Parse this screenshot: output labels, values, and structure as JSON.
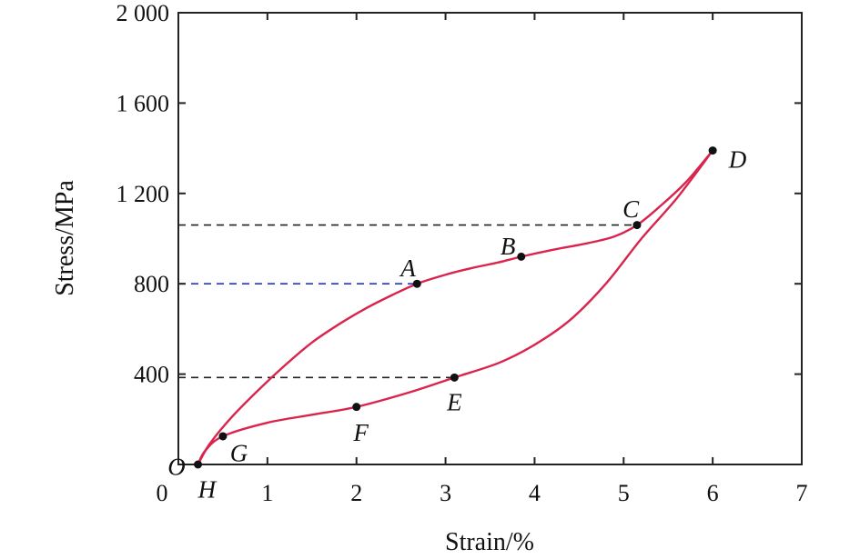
{
  "chart_data": {
    "type": "line",
    "xlabel": "Strain/%",
    "ylabel": "Stress/MPa",
    "xlim": [
      0,
      7
    ],
    "ylim": [
      0,
      2000
    ],
    "x_ticks": [
      {
        "value": 0,
        "label": "0"
      },
      {
        "value": 1,
        "label": "1"
      },
      {
        "value": 2,
        "label": "2"
      },
      {
        "value": 3,
        "label": "3"
      },
      {
        "value": 4,
        "label": "4"
      },
      {
        "value": 5,
        "label": "5"
      },
      {
        "value": 6,
        "label": "6"
      },
      {
        "value": 7,
        "label": "7"
      }
    ],
    "y_ticks": [
      {
        "value": 0,
        "label": "0"
      },
      {
        "value": 400,
        "label": "400"
      },
      {
        "value": 800,
        "label": "800"
      },
      {
        "value": 1200,
        "label": "1 200"
      },
      {
        "value": 1600,
        "label": "1 600"
      },
      {
        "value": 2000,
        "label": "2 000"
      }
    ],
    "grid": false,
    "series": [
      {
        "color": "#d9254e",
        "points": [
          [
            0.22,
            0
          ],
          [
            0.35,
            90
          ],
          [
            0.6,
            210
          ],
          [
            0.9,
            330
          ],
          [
            1.2,
            440
          ],
          [
            1.5,
            540
          ],
          [
            1.8,
            620
          ],
          [
            2.1,
            690
          ],
          [
            2.4,
            750
          ],
          [
            2.68,
            800
          ],
          [
            3.0,
            840
          ],
          [
            3.3,
            870
          ],
          [
            3.6,
            895
          ],
          [
            3.85,
            920
          ],
          [
            4.2,
            950
          ],
          [
            4.6,
            980
          ],
          [
            4.9,
            1010
          ],
          [
            5.15,
            1060
          ],
          [
            5.4,
            1140
          ],
          [
            5.7,
            1250
          ],
          [
            6.0,
            1390
          ]
        ]
      },
      {
        "color": "#d9254e",
        "points": [
          [
            6.0,
            1390
          ],
          [
            5.6,
            1180
          ],
          [
            5.2,
            1000
          ],
          [
            4.8,
            800
          ],
          [
            4.4,
            640
          ],
          [
            4.0,
            530
          ],
          [
            3.6,
            450
          ],
          [
            3.1,
            385
          ],
          [
            2.6,
            320
          ],
          [
            2.0,
            255
          ],
          [
            1.5,
            220
          ],
          [
            1.0,
            185
          ],
          [
            0.5,
            125
          ],
          [
            0.3,
            60
          ],
          [
            0.22,
            0
          ]
        ]
      }
    ],
    "reference_lines": [
      {
        "y": 1060,
        "x_end": 5.15,
        "color": "#222222"
      },
      {
        "y": 800,
        "x_end": 2.68,
        "color": "#2233cc"
      },
      {
        "y": 385,
        "x_end": 3.1,
        "color": "#222222"
      }
    ],
    "annotations": [
      {
        "name": "point-a",
        "label": "A",
        "x": 2.68,
        "y": 800,
        "marker": true,
        "label_dx": -0.1,
        "label_dy": 70
      },
      {
        "name": "point-b",
        "label": "B",
        "x": 3.85,
        "y": 920,
        "marker": true,
        "label_dx": -0.15,
        "label_dy": 45
      },
      {
        "name": "point-c",
        "label": "C",
        "x": 5.15,
        "y": 1060,
        "marker": true,
        "label_dx": -0.07,
        "label_dy": 70
      },
      {
        "name": "point-d",
        "label": "D",
        "x": 6.0,
        "y": 1390,
        "marker": true,
        "label_dx": 0.28,
        "label_dy": -40
      },
      {
        "name": "point-e",
        "label": "E",
        "x": 3.1,
        "y": 385,
        "marker": true,
        "label_dx": 0.0,
        "label_dy": -110
      },
      {
        "name": "point-f",
        "label": "F",
        "x": 2.0,
        "y": 255,
        "marker": true,
        "label_dx": 0.05,
        "label_dy": -115
      },
      {
        "name": "point-g",
        "label": "G",
        "x": 0.5,
        "y": 125,
        "marker": true,
        "label_dx": 0.18,
        "label_dy": -75
      },
      {
        "name": "point-o",
        "label": "O",
        "x": 0.22,
        "y": 0,
        "marker": true,
        "label_dx": -0.24,
        "label_dy": -10
      },
      {
        "name": "point-h",
        "label": "H",
        "x": 0.22,
        "y": 0,
        "marker": false,
        "label_dx": 0.1,
        "label_dy": -110
      }
    ]
  }
}
